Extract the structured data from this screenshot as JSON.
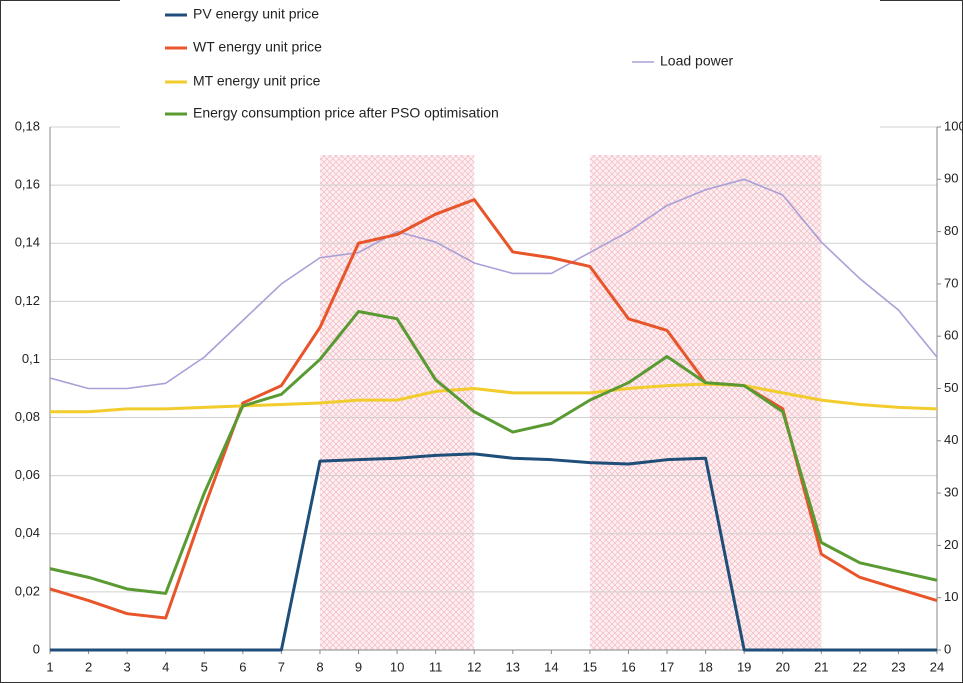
{
  "chart_data": {
    "type": "line",
    "x": [
      1,
      2,
      3,
      4,
      5,
      6,
      7,
      8,
      9,
      10,
      11,
      12,
      13,
      14,
      15,
      16,
      17,
      18,
      19,
      20,
      21,
      22,
      23,
      24
    ],
    "xlim": [
      1,
      24
    ],
    "xticks": [
      1,
      2,
      3,
      4,
      5,
      6,
      7,
      8,
      9,
      10,
      11,
      12,
      13,
      14,
      15,
      16,
      17,
      18,
      19,
      20,
      21,
      22,
      23,
      24
    ],
    "ylim": [
      0,
      0.18
    ],
    "yticks": [
      0,
      {
        "value": 0.02,
        "label": "0,02"
      },
      {
        "value": 0.04,
        "label": "0,04"
      },
      {
        "value": 0.06,
        "label": "0,06"
      },
      {
        "value": 0.08,
        "label": "0,08"
      },
      {
        "value": 0.1,
        "label": "0,1"
      },
      {
        "value": 0.12,
        "label": "0,12"
      },
      {
        "value": 0.14,
        "label": "0,14"
      },
      {
        "value": 0.16,
        "label": "0,16"
      },
      {
        "value": 0.18,
        "label": "0,18"
      }
    ],
    "y2lim": [
      0,
      100
    ],
    "y2ticks": [
      0,
      10,
      20,
      30,
      40,
      50,
      60,
      70,
      80,
      90,
      100
    ],
    "grid": true,
    "highlight_spans": [
      [
        8,
        12
      ],
      [
        15,
        21
      ]
    ],
    "series": [
      {
        "name": "PV energy unit price",
        "color": "#1f4e79",
        "values": [
          0,
          0,
          0,
          0,
          0,
          0,
          0,
          0.065,
          0.0655,
          0.066,
          0.067,
          0.0675,
          0.066,
          0.0655,
          0.0645,
          0.064,
          0.0655,
          0.066,
          0,
          0,
          0,
          0,
          0,
          0
        ]
      },
      {
        "name": "WT energy unit price",
        "color": "#e8552a",
        "values": [
          0.021,
          0.017,
          0.0125,
          0.011,
          0.049,
          0.085,
          0.091,
          0.111,
          0.14,
          0.143,
          0.15,
          0.155,
          0.137,
          0.135,
          0.132,
          0.114,
          0.11,
          0.092,
          0.091,
          0.083,
          0.033,
          0.025,
          0.021,
          0.017
        ]
      },
      {
        "name": "MT energy unit price",
        "color": "#f2cc2c",
        "values": [
          0.082,
          0.082,
          0.083,
          0.083,
          0.0835,
          0.084,
          0.0845,
          0.085,
          0.086,
          0.086,
          0.089,
          0.09,
          0.0885,
          0.0885,
          0.0885,
          0.09,
          0.091,
          0.0915,
          0.091,
          0.0885,
          0.086,
          0.0845,
          0.0835,
          0.083
        ]
      },
      {
        "name": "Energy consumption price after PSO optimisation",
        "color": "#5a9a32",
        "values": [
          0.028,
          0.025,
          0.021,
          0.0195,
          0.054,
          0.084,
          0.088,
          0.1,
          0.1165,
          0.114,
          0.093,
          0.082,
          0.075,
          0.078,
          0.086,
          0.092,
          0.101,
          0.092,
          0.091,
          0.082,
          0.037,
          0.03,
          0.027,
          0.024
        ]
      },
      {
        "name": "Load power",
        "color": "#a9a0d8",
        "axis": "y2",
        "values": [
          52,
          50,
          50,
          51,
          56,
          63,
          70,
          75,
          76,
          80,
          78,
          74,
          72,
          72,
          76,
          80,
          85,
          88,
          90,
          87,
          78,
          71,
          65,
          56
        ]
      }
    ]
  }
}
